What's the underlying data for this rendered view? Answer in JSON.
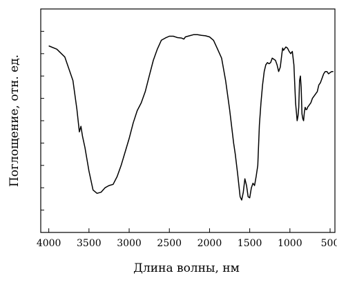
{
  "chart_data": {
    "type": "line",
    "title": "",
    "xlabel": "Длина волны, нм",
    "ylabel": "Поглощение, отн. ед.",
    "xlim": [
      4100,
      440
    ],
    "x_reversed": true,
    "x_ticks": [
      4000,
      3500,
      3000,
      2500,
      2000,
      1500,
      1000,
      500
    ],
    "x_tick_labels": [
      "4000",
      "3500",
      "3000",
      "2500",
      "2000",
      "1500",
      "1000",
      "500"
    ],
    "ylim": [
      0,
      10
    ],
    "y_ticks": [
      1,
      2,
      3,
      4,
      5,
      6,
      7,
      8,
      9
    ],
    "y_tick_labels_shown": false,
    "grid": false,
    "line_color": "#000000",
    "series": [
      {
        "x": [
          4000,
          3900,
          3800,
          3700,
          3650,
          3620,
          3600,
          3580,
          3550,
          3500,
          3450,
          3400,
          3350,
          3300,
          3250,
          3200,
          3150,
          3100,
          3050,
          3000,
          2950,
          2900,
          2850,
          2800,
          2750,
          2700,
          2650,
          2600,
          2550,
          2500,
          2450,
          2400,
          2350,
          2320,
          2300,
          2250,
          2200,
          2150,
          2100,
          2050,
          2000,
          1950,
          1900,
          1850,
          1800,
          1750,
          1700,
          1680,
          1650,
          1620,
          1600,
          1580,
          1560,
          1540,
          1520,
          1500,
          1480,
          1460,
          1440,
          1420,
          1400,
          1380,
          1360,
          1340,
          1320,
          1300,
          1280,
          1260,
          1240,
          1220,
          1200,
          1180,
          1160,
          1140,
          1120,
          1100,
          1090,
          1080,
          1070,
          1050,
          1030,
          1010,
          990,
          970,
          950,
          930,
          910,
          900,
          890,
          880,
          870,
          860,
          850,
          840,
          830,
          820,
          810,
          800,
          790,
          780,
          760,
          740,
          720,
          700,
          680,
          660,
          640,
          620,
          600,
          580,
          560,
          540,
          520,
          500,
          480,
          460
        ],
        "y": [
          8.35,
          8.2,
          7.85,
          6.8,
          5.5,
          4.5,
          4.75,
          4.3,
          3.8,
          2.75,
          1.9,
          1.75,
          1.8,
          2.0,
          2.1,
          2.15,
          2.5,
          3.0,
          3.6,
          4.2,
          4.9,
          5.45,
          5.8,
          6.3,
          7.0,
          7.7,
          8.2,
          8.6,
          8.7,
          8.78,
          8.78,
          8.72,
          8.7,
          8.65,
          8.75,
          8.8,
          8.85,
          8.85,
          8.82,
          8.8,
          8.75,
          8.6,
          8.2,
          7.8,
          6.8,
          5.5,
          4.0,
          3.5,
          2.6,
          1.6,
          1.45,
          1.8,
          2.4,
          2.1,
          1.6,
          1.55,
          2.0,
          2.2,
          2.1,
          2.5,
          3.0,
          4.8,
          5.8,
          6.6,
          7.2,
          7.5,
          7.6,
          7.55,
          7.6,
          7.8,
          7.75,
          7.7,
          7.5,
          7.2,
          7.4,
          8.0,
          8.25,
          8.15,
          8.2,
          8.3,
          8.25,
          8.1,
          8.0,
          8.1,
          7.5,
          5.8,
          5.0,
          5.2,
          5.6,
          6.8,
          7.0,
          6.5,
          5.3,
          5.1,
          5.0,
          5.4,
          5.6,
          5.5,
          5.5,
          5.6,
          5.7,
          5.8,
          6.0,
          6.1,
          6.2,
          6.3,
          6.6,
          6.7,
          6.9,
          7.1,
          7.2,
          7.2,
          7.1,
          7.15,
          7.2,
          7.2
        ]
      }
    ]
  }
}
